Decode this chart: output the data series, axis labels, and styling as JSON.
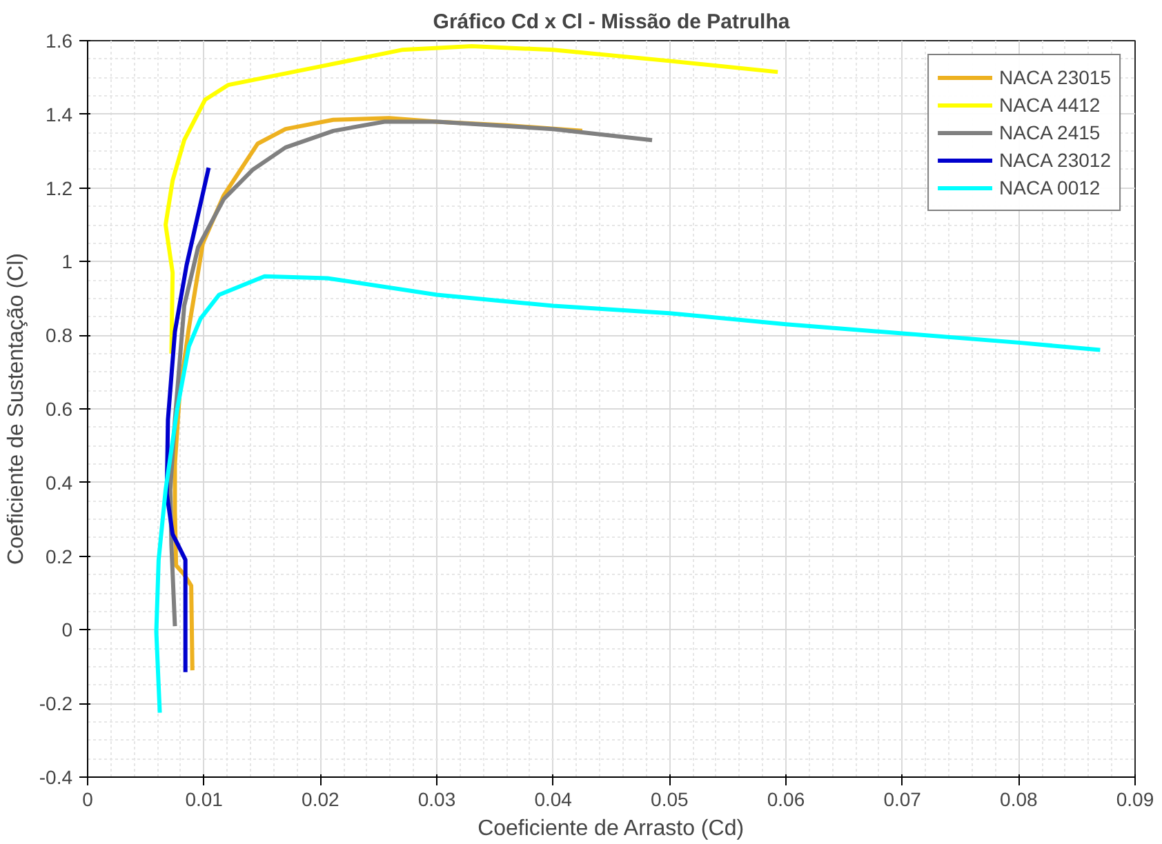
{
  "chart_data": {
    "type": "line",
    "title": "Gráfico Cd x Cl - Missão de Patrulha",
    "xlabel": "Coeficiente de Arrasto (Cd)",
    "ylabel": "Coeficiente de Sustentação (Cl)",
    "xlim": [
      0,
      0.09
    ],
    "ylim": [
      -0.4,
      1.6
    ],
    "xticks": [
      0,
      0.01,
      0.02,
      0.03,
      0.04,
      0.05,
      0.06,
      0.07,
      0.08,
      0.09
    ],
    "yticks": [
      -0.4,
      -0.2,
      0,
      0.2,
      0.4,
      0.6,
      0.8,
      1,
      1.2,
      1.4,
      1.6
    ],
    "grid": true,
    "legend": "top right",
    "line_style": "solid",
    "series": [
      {
        "name": "NACA 23015",
        "color": "#edb120",
        "x": [
          0.009,
          0.0089,
          0.0083,
          0.0076,
          0.0075,
          0.0075,
          0.0079,
          0.0087,
          0.0099,
          0.0117,
          0.0146,
          0.017,
          0.0211,
          0.0259,
          0.03,
          0.036,
          0.0425
        ],
        "values": [
          -0.11,
          0.12,
          0.15,
          0.175,
          0.32,
          0.45,
          0.64,
          0.82,
          1.05,
          1.18,
          1.32,
          1.36,
          1.385,
          1.39,
          1.38,
          1.37,
          1.355
        ]
      },
      {
        "name": "NACA 4412",
        "color": "#ffff00",
        "x": [
          0.0072,
          0.0073,
          0.0067,
          0.0073,
          0.0083,
          0.0101,
          0.0121,
          0.02,
          0.027,
          0.033,
          0.04,
          0.05,
          0.0593
        ],
        "values": [
          0.75,
          0.97,
          1.1,
          1.22,
          1.33,
          1.44,
          1.48,
          1.53,
          1.575,
          1.585,
          1.575,
          1.545,
          1.515
        ]
      },
      {
        "name": "NACA 2415",
        "color": "#808080",
        "x": [
          0.0075,
          0.0072,
          0.0071,
          0.0075,
          0.0083,
          0.0095,
          0.0117,
          0.0142,
          0.017,
          0.0211,
          0.0255,
          0.03,
          0.04,
          0.0485
        ],
        "values": [
          0.01,
          0.23,
          0.38,
          0.57,
          0.88,
          1.04,
          1.17,
          1.25,
          1.31,
          1.355,
          1.38,
          1.38,
          1.36,
          1.33
        ]
      },
      {
        "name": "NACA 23012",
        "color": "#0000cd",
        "x": [
          0.0084,
          0.0084,
          0.0073,
          0.0068,
          0.0069,
          0.0075,
          0.0085,
          0.0104
        ],
        "values": [
          -0.115,
          0.19,
          0.26,
          0.37,
          0.57,
          0.81,
          0.99,
          1.255
        ]
      },
      {
        "name": "NACA 0012",
        "color": "#00ffff",
        "x": [
          0.0062,
          0.0059,
          0.0061,
          0.0067,
          0.0077,
          0.0087,
          0.0097,
          0.0113,
          0.0152,
          0.0206,
          0.03,
          0.04,
          0.05,
          0.06,
          0.07,
          0.08,
          0.087
        ],
        "values": [
          -0.225,
          -0.005,
          0.19,
          0.38,
          0.6,
          0.77,
          0.845,
          0.91,
          0.96,
          0.955,
          0.91,
          0.88,
          0.86,
          0.83,
          0.805,
          0.78,
          0.76
        ]
      }
    ]
  }
}
